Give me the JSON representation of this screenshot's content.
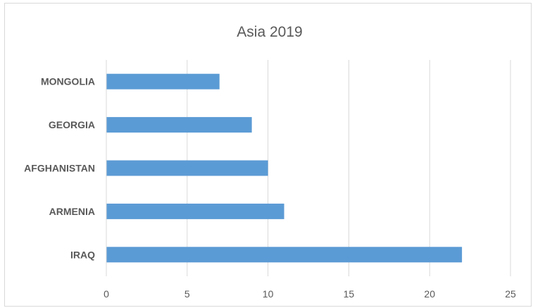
{
  "chart_data": {
    "type": "bar",
    "orientation": "horizontal",
    "title": "Asia 2019",
    "categories": [
      "IRAQ",
      "ARMENIA",
      "AFGHANISTAN",
      "GEORGIA",
      "MONGOLIA"
    ],
    "values": [
      22,
      11,
      10,
      9,
      7
    ],
    "xlabel": "",
    "ylabel": "",
    "xlim": [
      0,
      25
    ],
    "xticks": [
      0,
      5,
      10,
      15,
      20,
      25
    ],
    "grid": "vertical",
    "legend": "none",
    "bar_color": "#5b9bd5"
  }
}
